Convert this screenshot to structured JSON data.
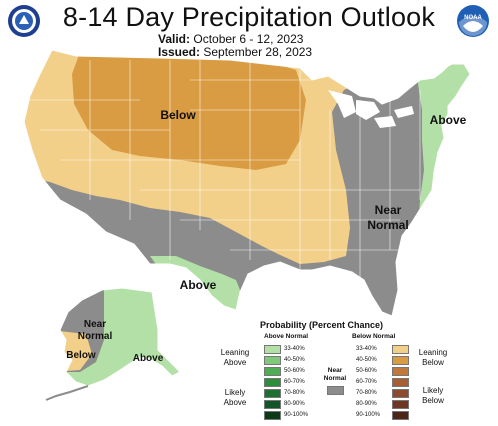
{
  "header": {
    "title": "8-14 Day Precipitation Outlook",
    "valid_label": "Valid:",
    "valid_value": "October 6 - 12, 2023",
    "issued_label": "Issued:",
    "issued_value": "September 28, 2023"
  },
  "logos": {
    "left": "doc-seal-icon",
    "right": "noaa-logo-icon",
    "right_text": "NOAA"
  },
  "map_labels": {
    "below": "Below",
    "above_east": "Above",
    "near_normal_line1": "Near",
    "near_normal_line2": "Normal",
    "above_south": "Above",
    "ak_near_line1": "Near",
    "ak_near_line2": "Normal",
    "ak_below": "Below",
    "ak_above": "Above"
  },
  "legend": {
    "title": "Probability (Percent Chance)",
    "above_header": "Above Normal",
    "below_header": "Below Normal",
    "near_line1": "Near",
    "near_line2": "Normal",
    "leaning_above_1": "Leaning",
    "leaning_above_2": "Above",
    "likely_above_1": "Likely",
    "likely_above_2": "Above",
    "leaning_below_1": "Leaning",
    "leaning_below_2": "Below",
    "likely_below_1": "Likely",
    "likely_below_2": "Below",
    "above_items": [
      {
        "label": "33-40%",
        "color": "#b3e0a6"
      },
      {
        "label": "40-50%",
        "color": "#80c87a"
      },
      {
        "label": "50-60%",
        "color": "#4fae55"
      },
      {
        "label": "60-70%",
        "color": "#2f8c3c"
      },
      {
        "label": "70-80%",
        "color": "#1e7031"
      },
      {
        "label": "80-90%",
        "color": "#145426"
      },
      {
        "label": "90-100%",
        "color": "#0b3a18"
      }
    ],
    "below_items": [
      {
        "label": "33-40%",
        "color": "#f3d08a"
      },
      {
        "label": "40-50%",
        "color": "#d99c42"
      },
      {
        "label": "50-60%",
        "color": "#c0793a"
      },
      {
        "label": "60-70%",
        "color": "#a65f33"
      },
      {
        "label": "70-80%",
        "color": "#8c4a2e"
      },
      {
        "label": "80-90%",
        "color": "#6e3724"
      },
      {
        "label": "90-100%",
        "color": "#4d2418"
      }
    ],
    "near_color": "#8c8c8c"
  }
}
